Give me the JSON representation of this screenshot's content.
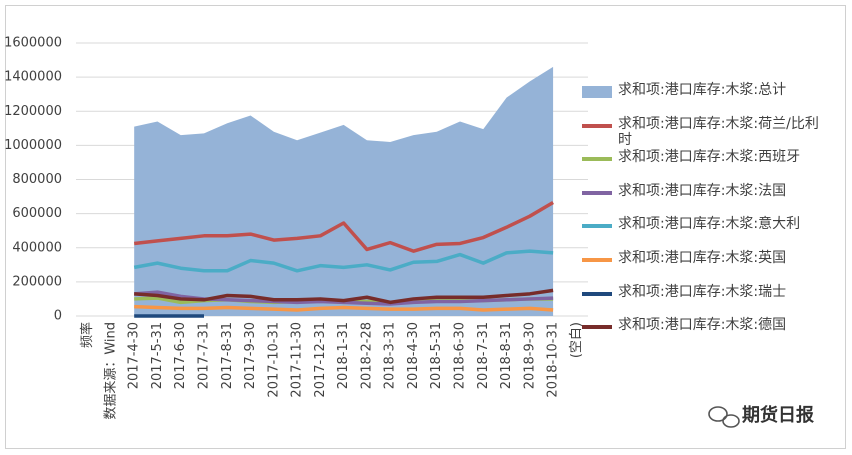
{
  "chart_data": {
    "type": "line",
    "categories": [
      "频率",
      "数据来源：Wind",
      "2017-4-30",
      "2017-5-31",
      "2017-6-30",
      "2017-7-31",
      "2017-8-31",
      "2017-9-30",
      "2017-10-31",
      "2017-11-30",
      "2017-12-31",
      "2018-1-31",
      "2018-2-28",
      "2018-3-31",
      "2018-4-30",
      "2018-5-31",
      "2018-6-30",
      "2018-7-31",
      "2018-8-31",
      "2018-9-30",
      "2018-10-31",
      "(空白)"
    ],
    "series": [
      {
        "name": "求和项:港口库存:木浆:总计",
        "color": "#95b3d7",
        "kind": "area",
        "values": [
          null,
          null,
          1110000,
          1140000,
          1060000,
          1070000,
          1130000,
          1175000,
          1080000,
          1030000,
          1075000,
          1120000,
          1030000,
          1020000,
          1060000,
          1080000,
          1140000,
          1095000,
          1280000,
          1375000,
          1460000,
          null
        ]
      },
      {
        "name": "求和项:港口库存:木浆:荷兰/比利时",
        "color": "#c0504d",
        "kind": "line",
        "values": [
          null,
          null,
          425000,
          440000,
          455000,
          470000,
          470000,
          480000,
          445000,
          455000,
          470000,
          545000,
          390000,
          430000,
          380000,
          420000,
          425000,
          460000,
          520000,
          585000,
          665000,
          null
        ]
      },
      {
        "name": "求和项:港口库存:木浆:西班牙",
        "color": "#9bbb59",
        "kind": "line",
        "values": [
          null,
          null,
          100000,
          105000,
          80000,
          90000,
          95000,
          85000,
          80000,
          85000,
          90000,
          80000,
          85000,
          80000,
          85000,
          90000,
          90000,
          90000,
          95000,
          100000,
          100000,
          null
        ]
      },
      {
        "name": "求和项:港口库存:木浆:法国",
        "color": "#8064a2",
        "kind": "line",
        "values": [
          null,
          null,
          130000,
          140000,
          115000,
          100000,
          95000,
          90000,
          85000,
          80000,
          85000,
          80000,
          75000,
          70000,
          80000,
          85000,
          85000,
          90000,
          95000,
          100000,
          105000,
          null
        ]
      },
      {
        "name": "求和项:港口库存:木浆:意大利",
        "color": "#4bacc6",
        "kind": "line",
        "values": [
          null,
          null,
          285000,
          310000,
          280000,
          265000,
          265000,
          325000,
          310000,
          265000,
          295000,
          285000,
          300000,
          270000,
          315000,
          320000,
          360000,
          310000,
          370000,
          380000,
          370000,
          null
        ]
      },
      {
        "name": "求和项:港口库存:木浆:英国",
        "color": "#f79646",
        "kind": "line",
        "values": [
          null,
          null,
          55000,
          50000,
          45000,
          45000,
          50000,
          45000,
          40000,
          35000,
          45000,
          50000,
          45000,
          40000,
          40000,
          45000,
          45000,
          35000,
          40000,
          45000,
          35000,
          null
        ]
      },
      {
        "name": "求和项:港口库存:木浆:瑞士",
        "color": "#1f497d",
        "kind": "line",
        "values": [
          null,
          null,
          0,
          0,
          0,
          0,
          null,
          null,
          null,
          null,
          null,
          null,
          null,
          null,
          null,
          null,
          null,
          null,
          null,
          null,
          null,
          null
        ]
      },
      {
        "name": "求和项:港口库存:木浆:德国",
        "color": "#772c2a",
        "kind": "line",
        "values": [
          null,
          null,
          130000,
          120000,
          100000,
          95000,
          120000,
          115000,
          95000,
          95000,
          100000,
          90000,
          110000,
          80000,
          100000,
          110000,
          110000,
          110000,
          120000,
          130000,
          150000,
          null
        ]
      }
    ],
    "ylim": [
      0,
      1600000
    ],
    "yticks": [
      0,
      200000,
      400000,
      600000,
      800000,
      1000000,
      1200000,
      1400000,
      1600000
    ],
    "grid": true,
    "legend": "right"
  },
  "watermark": "期货日报"
}
